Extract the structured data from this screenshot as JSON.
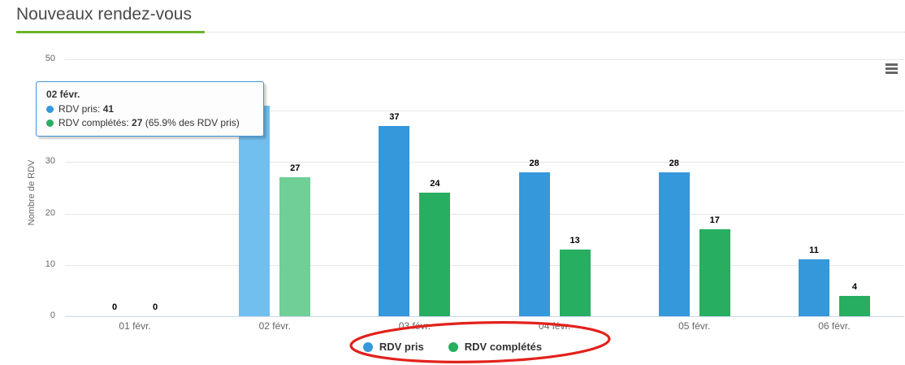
{
  "page": {
    "title": "Nouveaux rendez-vous"
  },
  "chart_data": {
    "type": "bar",
    "title": "Nouveaux rendez-vous",
    "categories": [
      "01 févr.",
      "02 févr.",
      "03 févr.",
      "04 févr.",
      "05 févr.",
      "06 févr."
    ],
    "series": [
      {
        "name": "RDV pris",
        "color": "#3498db",
        "hover_color": "#70bfee",
        "values": [
          0,
          41,
          37,
          28,
          28,
          11
        ]
      },
      {
        "name": "RDV complétés",
        "color": "#27ae60",
        "hover_color": "#6fcf97",
        "values": [
          0,
          27,
          24,
          13,
          17,
          4
        ]
      }
    ],
    "hovered_category_index": 1,
    "xlabel": "",
    "ylabel": "Nombre de RDV",
    "ylim": [
      0,
      50
    ],
    "yticks": [
      0,
      10,
      20,
      30,
      40,
      50
    ],
    "grid": true,
    "legend_position": "bottom"
  },
  "tooltip": {
    "header": "02 févr.",
    "rows": [
      {
        "label": "RDV pris",
        "value": "41",
        "suffix": "",
        "dot_color": "#3498db"
      },
      {
        "label": "RDV complétés",
        "value": "27",
        "suffix": " (65.9% des RDV pris)",
        "dot_color": "#27ae60"
      }
    ]
  },
  "legend": {
    "items": [
      {
        "label": "RDV pris",
        "color": "#3498db"
      },
      {
        "label": "RDV complétés",
        "color": "#27ae60"
      }
    ]
  },
  "annotation": {
    "shape": "ellipse",
    "color": "#e3211c"
  },
  "icons": {
    "context_menu": "hamburger-menu-icon"
  },
  "colors": {
    "title_underline": "#6eb32a",
    "gridline": "#e6e6e6",
    "axis_line": "#ccd6eb",
    "tooltip_border": "#4094d9"
  }
}
